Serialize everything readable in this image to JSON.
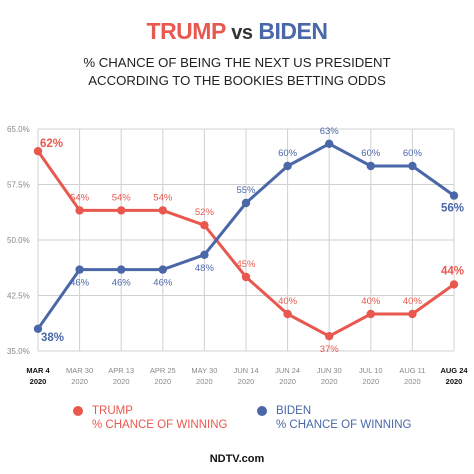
{
  "header": {
    "title_trump": "TRUMP",
    "title_vs": "vs",
    "title_biden": "BIDEN",
    "subtitle_line1": "% CHANCE OF BEING THE NEXT US PRESIDENT",
    "subtitle_line2": "ACCORDING TO THE BOOKIES BETTING ODDS"
  },
  "legend": {
    "trump_line1": "TRUMP",
    "trump_line2": "% CHANCE OF WINNING",
    "biden_line1": "BIDEN",
    "biden_line2": "% CHANCE OF WINNING"
  },
  "source": "NDTV.com",
  "colors": {
    "trump": "#e8584f",
    "biden": "#4a67a8",
    "grid": "#d0d0d0",
    "tick": "#888888",
    "axis_label": "#333333"
  },
  "chart_data": {
    "type": "line",
    "title": "TRUMP vs BIDEN",
    "subtitle": "% CHANCE OF BEING THE NEXT US PRESIDENT ACCORDING TO THE BOOKIES BETTING ODDS",
    "categories": [
      [
        "MAR 4",
        "2020"
      ],
      [
        "MAR 30",
        "2020"
      ],
      [
        "APR 13",
        "2020"
      ],
      [
        "APR 25",
        "2020"
      ],
      [
        "MAY 30",
        "2020"
      ],
      [
        "JUN 14",
        "2020"
      ],
      [
        "JUN 24",
        "2020"
      ],
      [
        "JUN 30",
        "2020"
      ],
      [
        "JUL 10",
        "2020"
      ],
      [
        "AUG 11",
        "2020"
      ],
      [
        "AUG 24",
        "2020"
      ]
    ],
    "bold_categories": [
      0,
      10
    ],
    "yticks": [
      "65.0%",
      "57.5%",
      "50.0%",
      "42.5%",
      "35.0%"
    ],
    "ytick_values": [
      65,
      57.5,
      50,
      42.5,
      35
    ],
    "ylim": [
      35,
      65
    ],
    "grid": true,
    "series": [
      {
        "name": "TRUMP",
        "color": "#e8584f",
        "values": [
          62,
          54,
          54,
          54,
          52,
          45,
          40,
          37,
          40,
          40,
          44
        ],
        "labels": [
          "62%",
          "54%",
          "54%",
          "54%",
          "52%",
          "45%",
          "40%",
          "37%",
          "40%",
          "40%",
          "44%"
        ],
        "label_positions": [
          "right",
          "above",
          "above",
          "above",
          "above",
          "above",
          "above",
          "below",
          "above",
          "above",
          "above"
        ]
      },
      {
        "name": "BIDEN",
        "color": "#4a67a8",
        "values": [
          38,
          46,
          46,
          46,
          48,
          55,
          60,
          63,
          60,
          60,
          56
        ],
        "labels": [
          "38%",
          "46%",
          "46%",
          "46%",
          "48%",
          "55%",
          "60%",
          "63%",
          "60%",
          "60%",
          "56%"
        ],
        "label_positions": [
          "right-below",
          "below",
          "below",
          "below",
          "below",
          "above",
          "above",
          "above",
          "above",
          "above",
          "below"
        ]
      }
    ]
  }
}
